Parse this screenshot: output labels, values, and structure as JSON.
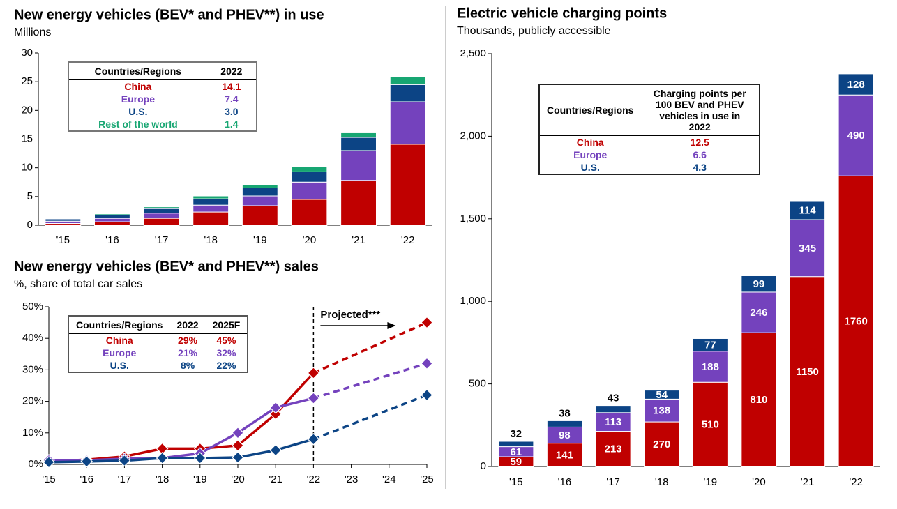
{
  "chart_data": [
    {
      "type": "bar",
      "title": "New energy vehicles (BEV* and PHEV**) in use",
      "subtitle": "Millions",
      "categories": [
        "'15",
        "'16",
        "'17",
        "'18",
        "'19",
        "'20",
        "'21",
        "'22"
      ],
      "series": [
        {
          "name": "China",
          "color": "#c00000",
          "values": [
            0.3,
            0.6,
            1.2,
            2.3,
            3.4,
            4.5,
            7.8,
            14.1
          ]
        },
        {
          "name": "Europe",
          "color": "#7442bd",
          "values": [
            0.4,
            0.6,
            0.9,
            1.2,
            1.7,
            3.0,
            5.2,
            7.4
          ]
        },
        {
          "name": "U.S.",
          "color": "#0c4485",
          "values": [
            0.4,
            0.6,
            0.8,
            1.1,
            1.4,
            1.8,
            2.3,
            3.0
          ]
        },
        {
          "name": "Rest of the world",
          "color": "#17a672",
          "values": [
            0.1,
            0.2,
            0.3,
            0.5,
            0.6,
            0.9,
            0.8,
            1.4
          ]
        }
      ],
      "ylim": [
        0,
        30
      ],
      "yticks": [
        0,
        5,
        10,
        15,
        20,
        25,
        30
      ],
      "grid": false,
      "table": {
        "header": [
          "Countries/Regions",
          "2022"
        ],
        "rows": [
          [
            "China",
            "14.1"
          ],
          [
            "Europe",
            "7.4"
          ],
          [
            "U.S.",
            "3.0"
          ],
          [
            "Rest of the world",
            "1.4"
          ]
        ]
      }
    },
    {
      "type": "line",
      "title": "New energy vehicles (BEV* and PHEV**) sales",
      "subtitle": "%, share of total car sales",
      "categories": [
        "'15",
        "'16",
        "'17",
        "'18",
        "'19",
        "'20",
        "'21",
        "'22",
        "'23",
        "'24",
        "'25"
      ],
      "series": [
        {
          "name": "China",
          "color": "#c00000",
          "values": [
            1,
            1.5,
            2.5,
            5,
            5,
            6,
            16,
            29,
            null,
            null,
            45
          ]
        },
        {
          "name": "Europe",
          "color": "#7442bd",
          "values": [
            1.3,
            1.3,
            1.8,
            2,
            3.5,
            10,
            18,
            21,
            null,
            null,
            32
          ]
        },
        {
          "name": "U.S.",
          "color": "#0c4485",
          "values": [
            0.7,
            0.9,
            1.2,
            2,
            2,
            2.2,
            4.5,
            8,
            null,
            null,
            22
          ]
        }
      ],
      "ylim": [
        0,
        50
      ],
      "yticks": [
        {
          "value": 0,
          "label": "0%"
        },
        {
          "value": 10,
          "label": "10%"
        },
        {
          "value": 20,
          "label": "20%"
        },
        {
          "value": 30,
          "label": "30%"
        },
        {
          "value": 40,
          "label": "40%"
        },
        {
          "value": 50,
          "label": "50%"
        }
      ],
      "grid": false,
      "projection_label": "Projected***",
      "table": {
        "header": [
          "Countries/Regions",
          "2022",
          "2025F"
        ],
        "rows": [
          [
            "China",
            "29%",
            "45%"
          ],
          [
            "Europe",
            "21%",
            "32%"
          ],
          [
            "U.S.",
            "8%",
            "22%"
          ]
        ]
      }
    },
    {
      "type": "bar",
      "title": "Electric vehicle charging points",
      "subtitle": "Thousands, publicly accessible",
      "categories": [
        "'15",
        "'16",
        "'17",
        "'18",
        "'19",
        "'20",
        "'21",
        "'22"
      ],
      "series": [
        {
          "name": "China",
          "color": "#c00000",
          "values": [
            59,
            141,
            213,
            270,
            510,
            810,
            1150,
            1760
          ]
        },
        {
          "name": "Europe",
          "color": "#7442bd",
          "values": [
            61,
            98,
            113,
            138,
            188,
            246,
            345,
            490
          ]
        },
        {
          "name": "U.S.",
          "color": "#0c4485",
          "values": [
            32,
            38,
            43,
            54,
            77,
            99,
            114,
            128
          ]
        }
      ],
      "ylim": [
        0,
        2500
      ],
      "yticks": [
        0,
        500,
        {
          "value": 1000,
          "label": "1,000"
        },
        {
          "value": 1500,
          "label": "1,500"
        },
        {
          "value": 2000,
          "label": "2,000"
        },
        {
          "value": 2500,
          "label": "2,500"
        }
      ],
      "grid": false,
      "data_labels": true,
      "table": {
        "header": [
          "Countries/Regions",
          "Charging points per 100 BEV and PHEV vehicles in use in 2022"
        ],
        "rows": [
          [
            "China",
            "12.5"
          ],
          [
            "Europe",
            "6.6"
          ],
          [
            "U.S.",
            "4.3"
          ]
        ]
      }
    }
  ]
}
